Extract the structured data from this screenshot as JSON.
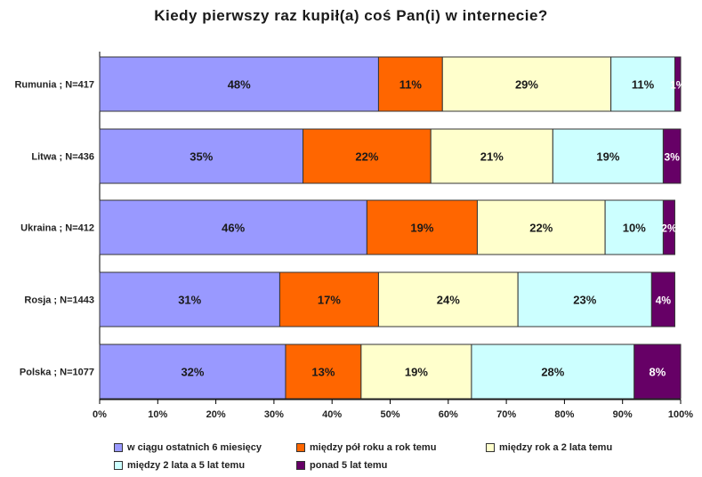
{
  "chart_data": {
    "type": "bar",
    "orientation": "horizontal",
    "stacked": true,
    "normalized": true,
    "title": "Kiedy pierwszy raz kupił(a) coś Pan(i) w internecie?",
    "categories": [
      "Rumunia ; N=417",
      "Litwa ; N=436",
      "Ukraina ; N=412",
      "Rosja ; N=1443",
      "Polska ; N=1077"
    ],
    "series": [
      {
        "name": "w ciągu ostatnich 6 miesięcy",
        "color": "#9999ff",
        "values": [
          48,
          35,
          46,
          31,
          32
        ],
        "labels": [
          "48%",
          "35%",
          "46%",
          "31%",
          "32%"
        ]
      },
      {
        "name": "między pół roku a rok temu",
        "color": "#ff6600",
        "values": [
          11,
          22,
          19,
          17,
          13
        ],
        "labels": [
          "11%",
          "22%",
          "19%",
          "17%",
          "13%"
        ]
      },
      {
        "name": "między rok a 2 lata temu",
        "color": "#ffffcc",
        "values": [
          29,
          21,
          22,
          24,
          19
        ],
        "labels": [
          "29%",
          "21%",
          "22%",
          "24%",
          "19%"
        ]
      },
      {
        "name": "między 2 lata a 5 lat temu",
        "color": "#ccffff",
        "values": [
          11,
          19,
          10,
          23,
          28
        ],
        "labels": [
          "11%",
          "19%",
          "10%",
          "23%",
          "28%"
        ]
      },
      {
        "name": "ponad 5 lat temu",
        "color": "#660066",
        "values": [
          1,
          3,
          2,
          4,
          8
        ],
        "labels": [
          "1%",
          "3%",
          "2%",
          "4%",
          "8%"
        ]
      }
    ],
    "xlim": [
      0,
      100
    ],
    "xticks": [
      "0%",
      "10%",
      "20%",
      "30%",
      "40%",
      "50%",
      "60%",
      "70%",
      "80%",
      "90%",
      "100%"
    ],
    "legend_position": "bottom",
    "grid": false
  }
}
